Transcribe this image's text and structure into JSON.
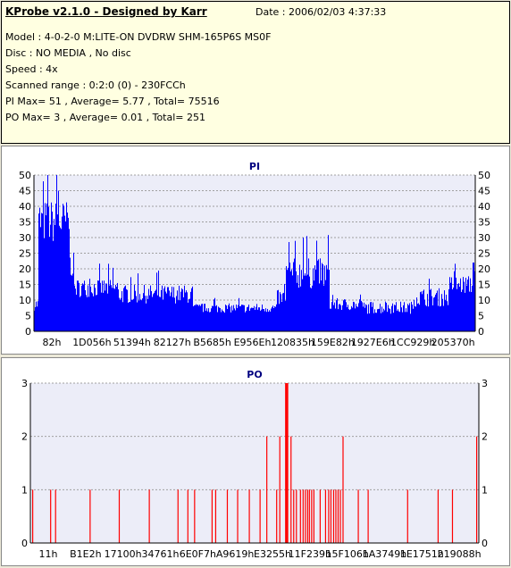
{
  "info": {
    "title": "KProbe v2.1.0 - Designed by Karr",
    "date": "Date : 2006/02/03 4:37:33",
    "lines": [
      "Model : 4-0-2-0 M:LITE-ON DVDRW SHM-165P6S MS0F",
      "Disc : NO MEDIA , No disc",
      "Speed : 4x",
      "Scanned range : 0:2:0 (0) - 230FCCh",
      "PI Max= 51 , Average= 5.77 , Total= 75516",
      "PO Max= 3 , Average= 0.01 , Total= 251"
    ]
  },
  "colors": {
    "panel_bg": "#ffffe1",
    "chart_bg": "#ffffff",
    "plot_bg": "#ecedf8",
    "grid": "#a0a0a0",
    "pi_color": "#0000ff",
    "po_color": "#ff0000",
    "title_color": "#000080"
  },
  "chart_data": [
    {
      "type": "bar",
      "title": "PI",
      "ylim": [
        0,
        50
      ],
      "yticks": [
        0,
        5,
        10,
        15,
        20,
        25,
        30,
        35,
        40,
        45,
        50
      ],
      "xtick_labels": [
        "82h",
        "1D056h",
        "51394h",
        "82127h",
        "B5685h",
        "E956Eh",
        "120835h",
        "159E82h",
        "1927E6h",
        "1CC929h",
        "205370h"
      ],
      "grid": true,
      "profile": [
        {
          "from": 0.0,
          "to": 0.01,
          "base": 8,
          "amp": 4
        },
        {
          "from": 0.01,
          "to": 0.08,
          "base": 33,
          "amp": 14
        },
        {
          "from": 0.08,
          "to": 0.09,
          "base": 20,
          "amp": 8
        },
        {
          "from": 0.09,
          "to": 0.19,
          "base": 13,
          "amp": 6
        },
        {
          "from": 0.19,
          "to": 0.36,
          "base": 11,
          "amp": 6
        },
        {
          "from": 0.36,
          "to": 0.55,
          "base": 7,
          "amp": 3
        },
        {
          "from": 0.55,
          "to": 0.57,
          "base": 10,
          "amp": 5
        },
        {
          "from": 0.57,
          "to": 0.67,
          "base": 17,
          "amp": 10
        },
        {
          "from": 0.67,
          "to": 0.73,
          "base": 8,
          "amp": 4
        },
        {
          "from": 0.73,
          "to": 0.86,
          "base": 7,
          "amp": 4
        },
        {
          "from": 0.86,
          "to": 0.94,
          "base": 10,
          "amp": 6
        },
        {
          "from": 0.94,
          "to": 1.0,
          "base": 14,
          "amp": 6
        }
      ],
      "peaks": [
        {
          "pos": 0.03,
          "value": 51
        },
        {
          "pos": 0.05,
          "value": 50
        },
        {
          "pos": 0.02,
          "value": 48
        },
        {
          "pos": 0.055,
          "value": 45
        },
        {
          "pos": 0.61,
          "value": 30
        },
        {
          "pos": 0.64,
          "value": 29
        },
        {
          "pos": 0.995,
          "value": 22
        }
      ]
    },
    {
      "type": "bar",
      "title": "PO",
      "ylim": [
        0,
        3
      ],
      "yticks": [
        0,
        1,
        2,
        3
      ],
      "xtick_labels": [
        "11h",
        "B1E2h",
        "17100h",
        "34761h",
        "6E0F7h",
        "A9619h",
        "E3255h",
        "11F239h",
        "15F106h",
        "1A3749h",
        "1E1751h",
        "219088h"
      ],
      "grid": true,
      "events": [
        {
          "pos": 0.004,
          "value": 1
        },
        {
          "pos": 0.044,
          "value": 1
        },
        {
          "pos": 0.055,
          "value": 1
        },
        {
          "pos": 0.132,
          "value": 1
        },
        {
          "pos": 0.197,
          "value": 1
        },
        {
          "pos": 0.264,
          "value": 1
        },
        {
          "pos": 0.328,
          "value": 1
        },
        {
          "pos": 0.35,
          "value": 1
        },
        {
          "pos": 0.365,
          "value": 1
        },
        {
          "pos": 0.404,
          "value": 1
        },
        {
          "pos": 0.412,
          "value": 1
        },
        {
          "pos": 0.438,
          "value": 1
        },
        {
          "pos": 0.461,
          "value": 1
        },
        {
          "pos": 0.487,
          "value": 1
        },
        {
          "pos": 0.511,
          "value": 1
        },
        {
          "pos": 0.526,
          "value": 2
        },
        {
          "pos": 0.548,
          "value": 1
        },
        {
          "pos": 0.555,
          "value": 2
        },
        {
          "pos": 0.568,
          "value": 3
        },
        {
          "pos": 0.571,
          "value": 3
        },
        {
          "pos": 0.58,
          "value": 2
        },
        {
          "pos": 0.586,
          "value": 1
        },
        {
          "pos": 0.592,
          "value": 1
        },
        {
          "pos": 0.601,
          "value": 1
        },
        {
          "pos": 0.607,
          "value": 1
        },
        {
          "pos": 0.612,
          "value": 1
        },
        {
          "pos": 0.617,
          "value": 1
        },
        {
          "pos": 0.621,
          "value": 1
        },
        {
          "pos": 0.626,
          "value": 1
        },
        {
          "pos": 0.631,
          "value": 1
        },
        {
          "pos": 0.645,
          "value": 1
        },
        {
          "pos": 0.657,
          "value": 1
        },
        {
          "pos": 0.664,
          "value": 1
        },
        {
          "pos": 0.669,
          "value": 1
        },
        {
          "pos": 0.675,
          "value": 1
        },
        {
          "pos": 0.68,
          "value": 1
        },
        {
          "pos": 0.685,
          "value": 1
        },
        {
          "pos": 0.69,
          "value": 1
        },
        {
          "pos": 0.696,
          "value": 2
        },
        {
          "pos": 0.73,
          "value": 1
        },
        {
          "pos": 0.752,
          "value": 1
        },
        {
          "pos": 0.84,
          "value": 1
        },
        {
          "pos": 0.908,
          "value": 1
        },
        {
          "pos": 0.94,
          "value": 1
        },
        {
          "pos": 0.994,
          "value": 2
        }
      ]
    }
  ]
}
